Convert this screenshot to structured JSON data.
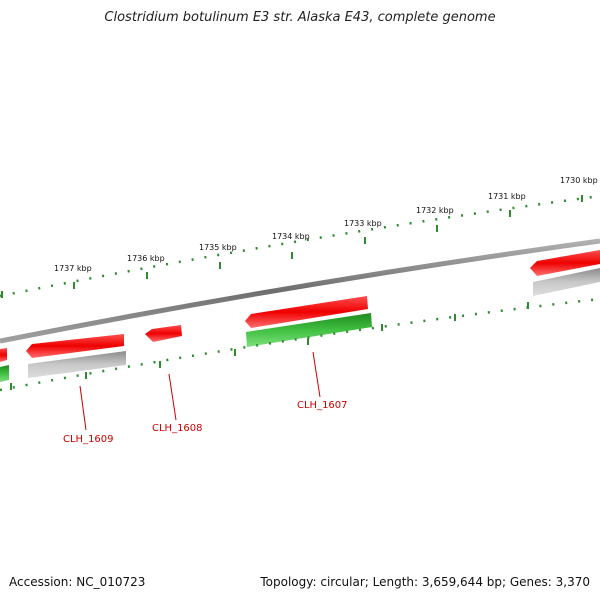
{
  "title": "Clostridium botulinum E3 str. Alaska E43, complete genome",
  "accession": "Accession: NC_010723",
  "summary": "Topology: circular; Length: 3,659,644 bp; Genes: 3,370",
  "ticks": [
    "1737 kbp",
    "1736 kbp",
    "1735 kbp",
    "1734 kbp",
    "1733 kbp",
    "1732 kbp",
    "1731 kbp",
    "1730 kbp"
  ],
  "gene_labels": [
    "CLH_1609",
    "CLH_1608",
    "CLH_1607"
  ],
  "colors": {
    "backbone": "#808080",
    "tick": "#2e8b2e",
    "gene_red": "#e8191d",
    "gene_green": "#2fae2f",
    "gene_grey": "#b8b8b8",
    "label": "#cc0000"
  }
}
